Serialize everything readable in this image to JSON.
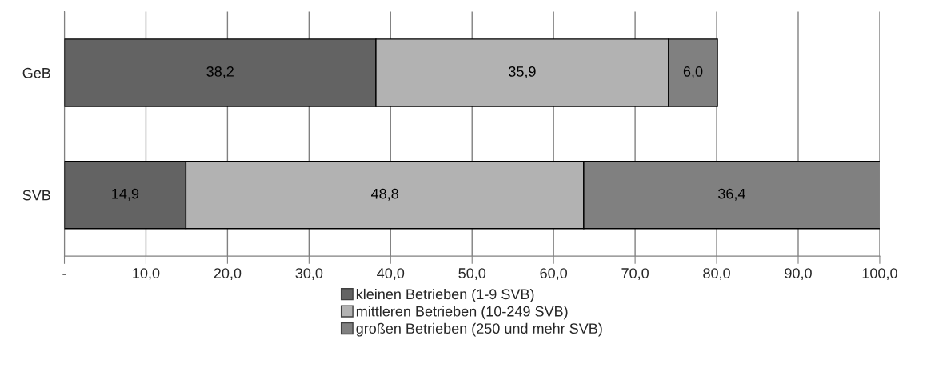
{
  "chart_data": {
    "type": "bar",
    "orientation": "horizontal",
    "stacked": true,
    "categories": [
      "GeB",
      "SVB"
    ],
    "series": [
      {
        "name": "kleinen Betrieben (1-9 SVB)",
        "color": "#636363",
        "values": [
          38.2,
          14.9
        ],
        "value_labels": [
          "38,2",
          "14,9"
        ]
      },
      {
        "name": "mittleren Betrieben (10-249 SVB)",
        "color": "#b2b2b2",
        "values": [
          35.9,
          48.8
        ],
        "value_labels": [
          "35,9",
          "48,8"
        ]
      },
      {
        "name": "großen Betrieben (250 und mehr SVB)",
        "color": "#808080",
        "values": [
          6.0,
          36.4
        ],
        "value_labels": [
          "6,0",
          "36,4"
        ]
      }
    ],
    "xlim": [
      0,
      100
    ],
    "xticks": [
      {
        "value": 0,
        "label": "-"
      },
      {
        "value": 10,
        "label": "10,0"
      },
      {
        "value": 20,
        "label": "20,0"
      },
      {
        "value": 30,
        "label": "30,0"
      },
      {
        "value": 40,
        "label": "40,0"
      },
      {
        "value": 50,
        "label": "50,0"
      },
      {
        "value": 60,
        "label": "60,0"
      },
      {
        "value": 70,
        "label": "70,0"
      },
      {
        "value": 80,
        "label": "80,0"
      },
      {
        "value": 90,
        "label": "90,0"
      },
      {
        "value": 100,
        "label": "100,0"
      }
    ],
    "grid": "x",
    "legend": "bottom"
  }
}
